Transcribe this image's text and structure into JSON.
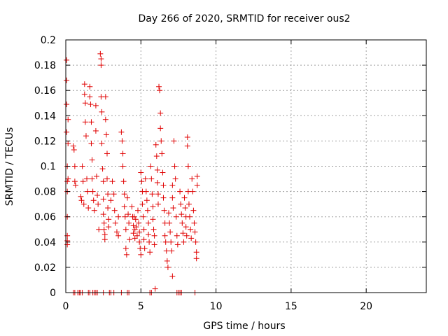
{
  "chart_data": {
    "type": "scatter",
    "title": "Day 266 of 2020, SRMTID for receiver ous2",
    "xlabel": "GPS time / hours",
    "ylabel": "SRMTID / TECUs",
    "xlim": [
      0,
      24
    ],
    "ylim": [
      0,
      0.2
    ],
    "xticks": [
      0,
      5,
      10,
      15,
      20
    ],
    "xtick_labels": [
      "0",
      "5",
      "10",
      "15",
      "20"
    ],
    "yticks": [
      0,
      0.02,
      0.04,
      0.06,
      0.08,
      0.1,
      0.12,
      0.14,
      0.16,
      0.18,
      0.2
    ],
    "ytick_labels": [
      "0",
      "0.02",
      "0.04",
      "0.06",
      "0.08",
      "0.1",
      "0.12",
      "0.14",
      "0.16",
      "0.18",
      "0.2"
    ],
    "grid": true,
    "marker": "+",
    "marker_color": "#e00000",
    "series": [
      {
        "name": "ous2",
        "points": [
          [
            0.05,
            0.184
          ],
          [
            0.05,
            0.168
          ],
          [
            0.05,
            0.149
          ],
          [
            0.05,
            0.127
          ],
          [
            0.1,
            0.1
          ],
          [
            0.1,
            0.088
          ],
          [
            0.1,
            0.08
          ],
          [
            0.1,
            0.06
          ],
          [
            0.1,
            0.045
          ],
          [
            0.1,
            0.041
          ],
          [
            0.1,
            0.038
          ],
          [
            0.15,
            0.137
          ],
          [
            0.15,
            0.118
          ],
          [
            0.15,
            0.09
          ],
          [
            0.5,
            0.116
          ],
          [
            0.55,
            0.113
          ],
          [
            0.6,
            0.1
          ],
          [
            0.6,
            0.088
          ],
          [
            0.65,
            0.085
          ],
          [
            1.0,
            0.076
          ],
          [
            1.05,
            0.073
          ],
          [
            1.1,
            0.1
          ],
          [
            1.15,
            0.088
          ],
          [
            1.2,
            0.07
          ],
          [
            1.25,
            0.165
          ],
          [
            1.25,
            0.157
          ],
          [
            1.3,
            0.15
          ],
          [
            1.3,
            0.135
          ],
          [
            1.35,
            0.124
          ],
          [
            1.4,
            0.09
          ],
          [
            1.45,
            0.08
          ],
          [
            1.5,
            0.067
          ],
          [
            1.6,
            0.163
          ],
          [
            1.6,
            0.155
          ],
          [
            1.65,
            0.149
          ],
          [
            1.7,
            0.135
          ],
          [
            1.7,
            0.118
          ],
          [
            1.75,
            0.105
          ],
          [
            1.75,
            0.09
          ],
          [
            1.8,
            0.08
          ],
          [
            1.85,
            0.073
          ],
          [
            1.9,
            0.065
          ],
          [
            2.0,
            0.148
          ],
          [
            2.0,
            0.128
          ],
          [
            2.05,
            0.092
          ],
          [
            2.1,
            0.077
          ],
          [
            2.15,
            0.07
          ],
          [
            2.2,
            0.05
          ],
          [
            2.3,
            0.189
          ],
          [
            2.35,
            0.185
          ],
          [
            2.35,
            0.18
          ],
          [
            2.35,
            0.155
          ],
          [
            2.4,
            0.143
          ],
          [
            2.4,
            0.118
          ],
          [
            2.45,
            0.098
          ],
          [
            2.5,
            0.088
          ],
          [
            2.5,
            0.074
          ],
          [
            2.5,
            0.062
          ],
          [
            2.55,
            0.055
          ],
          [
            2.55,
            0.05
          ],
          [
            2.6,
            0.046
          ],
          [
            2.6,
            0.042
          ],
          [
            2.65,
            0.155
          ],
          [
            2.65,
            0.137
          ],
          [
            2.7,
            0.125
          ],
          [
            2.75,
            0.11
          ],
          [
            2.75,
            0.09
          ],
          [
            2.8,
            0.078
          ],
          [
            2.8,
            0.067
          ],
          [
            2.85,
            0.058
          ],
          [
            2.85,
            0.052
          ],
          [
            3.0,
            0.073
          ],
          [
            3.1,
            0.088
          ],
          [
            3.2,
            0.078
          ],
          [
            3.25,
            0.065
          ],
          [
            3.3,
            0.055
          ],
          [
            3.4,
            0.048
          ],
          [
            3.5,
            0.06
          ],
          [
            3.5,
            0.045
          ],
          [
            3.7,
            0.127
          ],
          [
            3.75,
            0.12
          ],
          [
            3.8,
            0.11
          ],
          [
            3.8,
            0.1
          ],
          [
            3.85,
            0.088
          ],
          [
            3.9,
            0.078
          ],
          [
            3.9,
            0.068
          ],
          [
            3.95,
            0.06
          ],
          [
            4.0,
            0.05
          ],
          [
            4.0,
            0.035
          ],
          [
            4.05,
            0.03
          ],
          [
            4.1,
            0.075
          ],
          [
            4.15,
            0.062
          ],
          [
            4.2,
            0.055
          ],
          [
            4.25,
            0.042
          ],
          [
            4.4,
            0.068
          ],
          [
            4.45,
            0.06
          ],
          [
            4.5,
            0.053
          ],
          [
            4.5,
            0.047
          ],
          [
            4.55,
            0.06
          ],
          [
            4.6,
            0.05
          ],
          [
            4.6,
            0.043
          ],
          [
            4.65,
            0.058
          ],
          [
            4.7,
            0.052
          ],
          [
            4.75,
            0.045
          ],
          [
            4.8,
            0.065
          ],
          [
            4.85,
            0.055
          ],
          [
            4.9,
            0.048
          ],
          [
            4.9,
            0.04
          ],
          [
            4.95,
            0.035
          ],
          [
            5.0,
            0.03
          ],
          [
            5.0,
            0.095
          ],
          [
            5.05,
            0.088
          ],
          [
            5.1,
            0.08
          ],
          [
            5.1,
            0.07
          ],
          [
            5.15,
            0.06
          ],
          [
            5.2,
            0.05
          ],
          [
            5.2,
            0.042
          ],
          [
            5.25,
            0.035
          ],
          [
            5.3,
            0.09
          ],
          [
            5.35,
            0.08
          ],
          [
            5.4,
            0.073
          ],
          [
            5.45,
            0.065
          ],
          [
            5.5,
            0.055
          ],
          [
            5.5,
            0.046
          ],
          [
            5.55,
            0.04
          ],
          [
            5.6,
            0.032
          ],
          [
            5.65,
            0.1
          ],
          [
            5.7,
            0.09
          ],
          [
            5.75,
            0.078
          ],
          [
            5.8,
            0.068
          ],
          [
            5.8,
            0.058
          ],
          [
            5.85,
            0.05
          ],
          [
            5.9,
            0.045
          ],
          [
            5.9,
            0.038
          ],
          [
            5.95,
            0.003
          ],
          [
            6.0,
            0.117
          ],
          [
            6.05,
            0.108
          ],
          [
            6.1,
            0.097
          ],
          [
            6.1,
            0.087
          ],
          [
            6.15,
            0.078
          ],
          [
            6.15,
            0.07
          ],
          [
            6.2,
            0.163
          ],
          [
            6.25,
            0.16
          ],
          [
            6.3,
            0.142
          ],
          [
            6.3,
            0.13
          ],
          [
            6.35,
            0.12
          ],
          [
            6.4,
            0.11
          ],
          [
            6.45,
            0.095
          ],
          [
            6.5,
            0.085
          ],
          [
            6.5,
            0.075
          ],
          [
            6.55,
            0.065
          ],
          [
            6.6,
            0.055
          ],
          [
            6.6,
            0.045
          ],
          [
            6.65,
            0.04
          ],
          [
            6.7,
            0.033
          ],
          [
            6.75,
            0.025
          ],
          [
            6.8,
            0.02
          ],
          [
            6.85,
            0.063
          ],
          [
            6.9,
            0.055
          ],
          [
            6.95,
            0.048
          ],
          [
            7.0,
            0.04
          ],
          [
            7.05,
            0.033
          ],
          [
            7.1,
            0.085
          ],
          [
            7.1,
            0.075
          ],
          [
            7.15,
            0.067
          ],
          [
            7.2,
            0.12
          ],
          [
            7.25,
            0.1
          ],
          [
            7.3,
            0.09
          ],
          [
            7.35,
            0.06
          ],
          [
            7.4,
            0.045
          ],
          [
            7.45,
            0.038
          ],
          [
            7.1,
            0.013
          ],
          [
            7.6,
            0.08
          ],
          [
            7.65,
            0.07
          ],
          [
            7.7,
            0.062
          ],
          [
            7.75,
            0.055
          ],
          [
            7.8,
            0.047
          ],
          [
            7.85,
            0.04
          ],
          [
            7.9,
            0.075
          ],
          [
            7.95,
            0.067
          ],
          [
            8.0,
            0.06
          ],
          [
            8.0,
            0.052
          ],
          [
            8.05,
            0.045
          ],
          [
            8.1,
            0.123
          ],
          [
            8.1,
            0.116
          ],
          [
            8.15,
            0.1
          ],
          [
            8.15,
            0.08
          ],
          [
            8.2,
            0.07
          ],
          [
            8.25,
            0.06
          ],
          [
            8.3,
            0.05
          ],
          [
            8.35,
            0.043
          ],
          [
            8.4,
            0.09
          ],
          [
            8.45,
            0.08
          ],
          [
            8.5,
            0.065
          ],
          [
            8.55,
            0.055
          ],
          [
            8.6,
            0.048
          ],
          [
            8.65,
            0.04
          ],
          [
            8.7,
            0.032
          ],
          [
            8.7,
            0.027
          ],
          [
            8.75,
            0.092
          ],
          [
            8.75,
            0.085
          ],
          [
            0.5,
            0.0
          ],
          [
            0.6,
            0.0
          ],
          [
            0.8,
            0.0
          ],
          [
            0.9,
            0.0
          ],
          [
            1.0,
            0.0
          ],
          [
            1.1,
            0.0
          ],
          [
            1.5,
            0.0
          ],
          [
            1.6,
            0.0
          ],
          [
            1.8,
            0.0
          ],
          [
            1.9,
            0.0
          ],
          [
            2.0,
            0.0
          ],
          [
            2.1,
            0.0
          ],
          [
            2.5,
            0.0
          ],
          [
            2.9,
            0.0
          ],
          [
            3.0,
            0.0
          ],
          [
            3.2,
            0.0
          ],
          [
            3.7,
            0.0
          ],
          [
            4.1,
            0.0
          ],
          [
            4.2,
            0.0
          ],
          [
            5.6,
            0.0
          ],
          [
            5.7,
            0.0
          ],
          [
            7.4,
            0.0
          ],
          [
            7.5,
            0.0
          ],
          [
            7.6,
            0.0
          ],
          [
            7.7,
            0.0
          ],
          [
            8.6,
            0.0
          ]
        ]
      }
    ]
  }
}
